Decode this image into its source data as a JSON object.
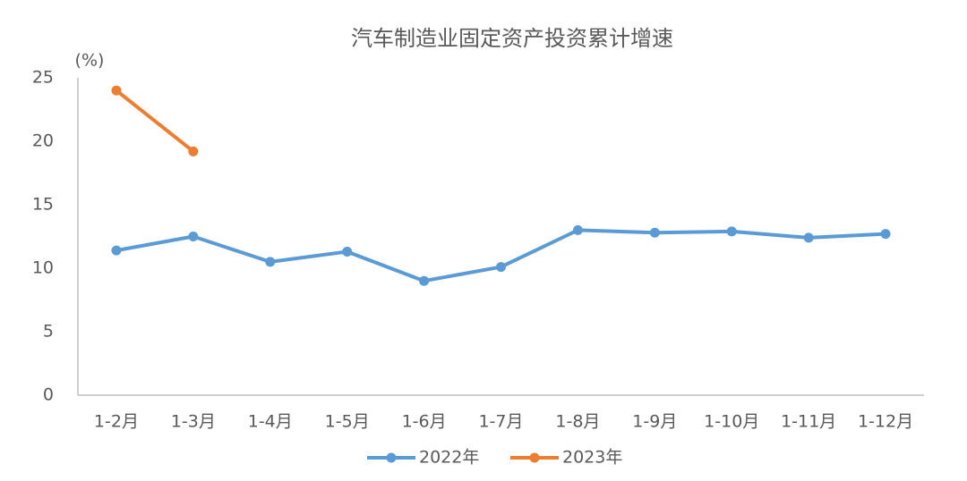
{
  "chart_data": {
    "type": "line",
    "title": "汽车制造业固定资产投资累计增速",
    "y_label": "(%)",
    "categories": [
      "1-2月",
      "1-3月",
      "1-4月",
      "1-5月",
      "1-6月",
      "1-7月",
      "1-8月",
      "1-9月",
      "1-10月",
      "1-11月",
      "1-12月"
    ],
    "series": [
      {
        "name": "2022年",
        "color": "#5b9bd5",
        "values": [
          11.4,
          12.5,
          10.5,
          11.3,
          9.0,
          10.1,
          13.0,
          12.8,
          12.9,
          12.4,
          12.7
        ]
      },
      {
        "name": "2023年",
        "color": "#ed7d31",
        "values": [
          24.0,
          19.2,
          null,
          null,
          null,
          null,
          null,
          null,
          null,
          null,
          null
        ]
      }
    ],
    "ylim": [
      0,
      25
    ],
    "yticks": [
      0,
      5,
      10,
      15,
      20,
      25
    ],
    "grid": false,
    "legend": "bottom"
  }
}
